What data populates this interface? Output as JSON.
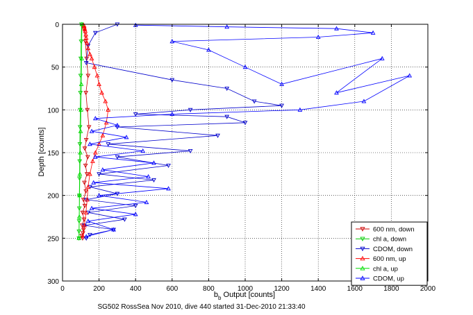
{
  "chart_data": {
    "type": "scatter",
    "title": "",
    "xlabel": "b_b Output [counts]",
    "xlabel_main": "b",
    "xlabel_sub": "b",
    "xlabel_rest": " Output [counts]",
    "ylabel": "Depth [counts]",
    "xlim": [
      0,
      2000
    ],
    "ylim": [
      300,
      0
    ],
    "y_reversed": true,
    "grid": true,
    "legend_position": "bottom-right",
    "caption": "SG502 RossSea Nov 2010, dive 440 started 31-Dec-2010 21:33:40",
    "x_ticks": [
      0,
      200,
      400,
      600,
      800,
      1000,
      1200,
      1400,
      1600,
      1800,
      2000
    ],
    "y_ticks": [
      0,
      50,
      100,
      150,
      200,
      250,
      300
    ],
    "series": [
      {
        "name": "600 nm, down",
        "color": "#cc0000",
        "marker": "tri-down",
        "line": true,
        "x": [
          118,
          125,
          132,
          140,
          128,
          136,
          145,
          130,
          122,
          138,
          126,
          134,
          120,
          128,
          115,
          122,
          110,
          118,
          108,
          115,
          112,
          105,
          110
        ],
        "y": [
          5,
          20,
          40,
          60,
          80,
          100,
          120,
          135,
          145,
          155,
          165,
          175,
          185,
          195,
          205,
          212,
          220,
          228,
          235,
          240,
          244,
          247,
          250
        ]
      },
      {
        "name": "chl a, down",
        "color": "#00cc00",
        "marker": "tri-down",
        "line": true,
        "x": [
          104,
          102,
          100,
          99,
          98,
          97,
          96,
          95,
          94,
          93,
          92,
          92,
          91,
          90,
          90
        ],
        "y": [
          0,
          20,
          40,
          60,
          80,
          100,
          120,
          140,
          160,
          180,
          200,
          215,
          230,
          242,
          250
        ]
      },
      {
        "name": "CDOM, down",
        "color": "#0000cc",
        "marker": "tri-down",
        "line": true,
        "x": [
          300,
          180,
          140,
          130,
          600,
          900,
          1050,
          1200,
          700,
          400,
          900,
          1000,
          300,
          850,
          250,
          700,
          300,
          580,
          200,
          500,
          150,
          300,
          130,
          400,
          140,
          340,
          120,
          280,
          150,
          130
        ],
        "y": [
          0,
          10,
          25,
          45,
          65,
          75,
          90,
          95,
          100,
          105,
          108,
          115,
          120,
          130,
          140,
          148,
          155,
          165,
          175,
          182,
          190,
          198,
          205,
          212,
          220,
          228,
          235,
          240,
          246,
          250
        ]
      },
      {
        "name": "600 nm, up",
        "color": "#ff0000",
        "marker": "tri-up",
        "line": true,
        "x": [
          112,
          120,
          128,
          135,
          140,
          150,
          165,
          180,
          200,
          220,
          240,
          250,
          235,
          215,
          200,
          190,
          175,
          160,
          150,
          140,
          135,
          130,
          128,
          125,
          122,
          120,
          118,
          116
        ],
        "y": [
          248,
          235,
          220,
          205,
          190,
          175,
          160,
          150,
          140,
          130,
          115,
          100,
          90,
          80,
          70,
          60,
          50,
          40,
          35,
          28,
          22,
          16,
          12,
          8,
          6,
          4,
          2,
          1
        ]
      },
      {
        "name": "chl a, up",
        "color": "#00dd00",
        "marker": "tri-up",
        "line": true,
        "x": [
          90,
          92,
          93,
          95,
          97,
          99,
          101,
          103,
          105,
          106
        ],
        "y": [
          250,
          225,
          200,
          175,
          150,
          125,
          100,
          70,
          40,
          0
        ]
      },
      {
        "name": "CDOM, up",
        "color": "#0000ff",
        "marker": "tri-up",
        "line": true,
        "x": [
          130,
          280,
          140,
          400,
          160,
          460,
          200,
          580,
          170,
          470,
          220,
          500,
          180,
          440,
          150,
          350,
          160,
          300,
          180,
          600,
          1300,
          1650,
          1900,
          1500,
          1750,
          1200,
          1000,
          800,
          600,
          1400,
          1700,
          1500,
          900,
          400
        ],
        "y": [
          248,
          240,
          230,
          222,
          215,
          208,
          200,
          192,
          185,
          178,
          170,
          162,
          155,
          148,
          140,
          132,
          125,
          118,
          110,
          105,
          100,
          90,
          60,
          80,
          40,
          70,
          50,
          30,
          20,
          15,
          10,
          5,
          3,
          1
        ]
      }
    ]
  }
}
